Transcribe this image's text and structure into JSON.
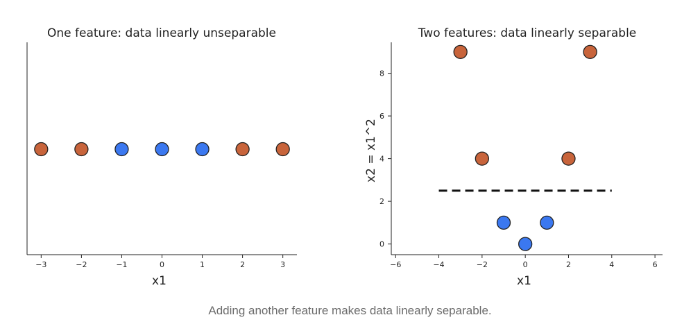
{
  "caption": "Adding another feature makes data linearly separable.",
  "colors": {
    "class_a": "#c8643b",
    "class_b": "#3b78f0",
    "edge": "#222222",
    "boundary": "#111111"
  },
  "chart_data": [
    {
      "type": "scatter",
      "title": "One feature: data linearly unseparable",
      "xlabel": "x1",
      "ylabel": "",
      "xlim": [
        -3.35,
        3.35
      ],
      "ylim": [
        -1,
        1
      ],
      "xticks": [
        -3,
        -2,
        -1,
        0,
        1,
        2,
        3
      ],
      "yticks": [],
      "grid": false,
      "series": [
        {
          "color": "#c8643b",
          "points": [
            [
              -3,
              0
            ],
            [
              -2,
              0
            ],
            [
              2,
              0
            ],
            [
              3,
              0
            ]
          ]
        },
        {
          "color": "#3b78f0",
          "points": [
            [
              -1,
              0
            ],
            [
              0,
              0
            ],
            [
              1,
              0
            ]
          ]
        }
      ]
    },
    {
      "type": "scatter",
      "title": "Two features: data linearly separable",
      "xlabel": "x1",
      "ylabel": "x2 = x1^2",
      "xlim": [
        -6.2,
        6.35
      ],
      "ylim": [
        -0.5,
        9.45
      ],
      "xticks": [
        -6,
        -4,
        -2,
        0,
        2,
        4,
        6
      ],
      "yticks": [
        0,
        2,
        4,
        6,
        8
      ],
      "grid": false,
      "series": [
        {
          "color": "#c8643b",
          "points": [
            [
              -3,
              9
            ],
            [
              3,
              9
            ],
            [
              -2,
              4
            ],
            [
              2,
              4
            ]
          ]
        },
        {
          "color": "#3b78f0",
          "points": [
            [
              -1,
              1
            ],
            [
              0,
              0
            ],
            [
              1,
              1
            ]
          ]
        }
      ],
      "lines": [
        {
          "style": "dashed",
          "color": "#111111",
          "points": [
            [
              -4,
              2.5
            ],
            [
              4,
              2.5
            ]
          ]
        }
      ]
    }
  ]
}
